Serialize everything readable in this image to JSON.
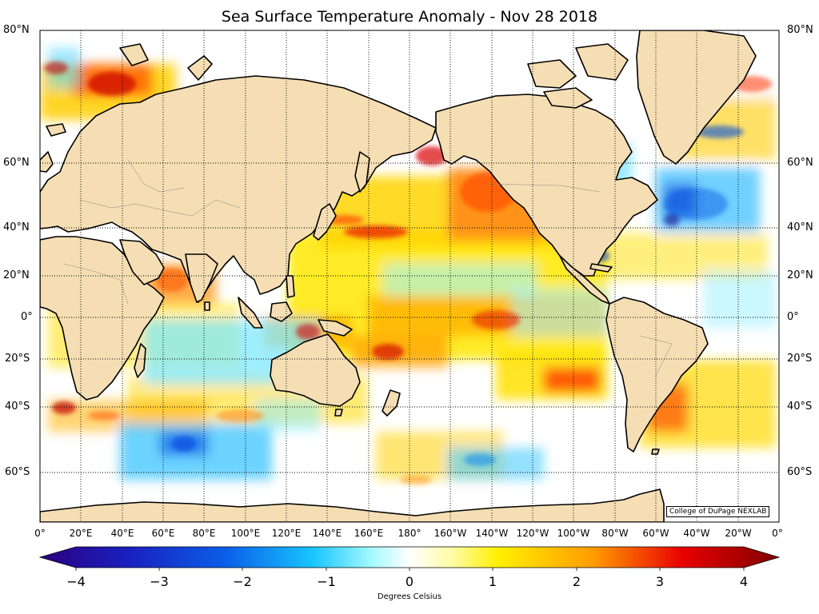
{
  "title": "Sea Surface Temperature Anomaly - Nov 28 2018",
  "credit": "College of DuPage NEXLAB",
  "latitude_labels": [
    "80°N",
    "60°N",
    "40°N",
    "20°N",
    "0°",
    "20°S",
    "40°S",
    "60°S"
  ],
  "longitude_labels": [
    "0°",
    "20°E",
    "40°E",
    "60°E",
    "80°E",
    "100°E",
    "120°E",
    "140°E",
    "160°E",
    "180°",
    "160°W",
    "140°W",
    "120°W",
    "100°W",
    "80°W",
    "60°W",
    "40°W",
    "20°W",
    "0°"
  ],
  "colorbar": {
    "ticks": [
      "−4",
      "−3",
      "−2",
      "−1",
      "0",
      "1",
      "2",
      "3",
      "4"
    ],
    "label": "Degrees Celsius",
    "range": [
      -4,
      4
    ],
    "colors": [
      "#2c0080",
      "#0a3ed8",
      "#0aa0f0",
      "#7ef5ff",
      "#ffffff",
      "#fff000",
      "#ff8800",
      "#e00000",
      "#800000"
    ]
  },
  "colors": {
    "land": "#f5deb3",
    "coastline": "#000000",
    "warm_anomaly": "#ff9900",
    "cold_anomaly": "#33ccff"
  }
}
